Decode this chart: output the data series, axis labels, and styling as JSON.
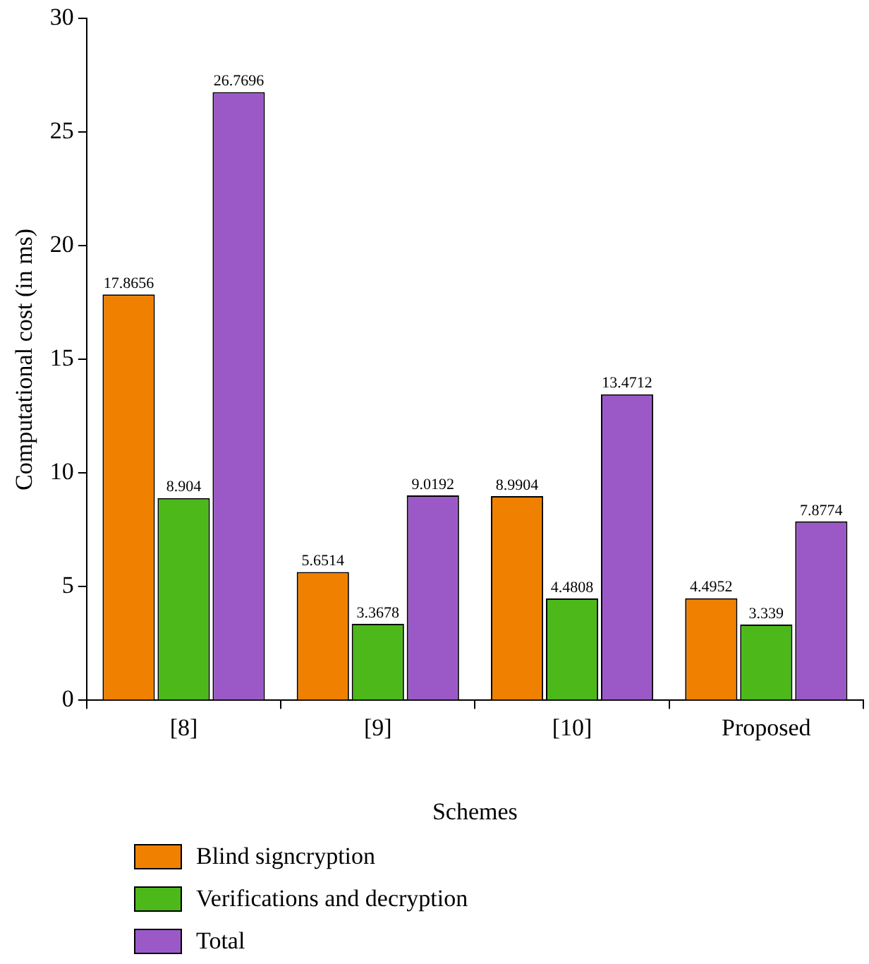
{
  "chart_data": {
    "type": "bar",
    "xlabel": "Schemes",
    "ylabel": "Computational cost (in ms)",
    "categories": [
      "[8]",
      "[9]",
      "[10]",
      "Proposed"
    ],
    "series": [
      {
        "name": "Blind signcryption",
        "color": "#f08000",
        "values": [
          17.8656,
          5.6514,
          8.9904,
          4.4952
        ]
      },
      {
        "name": "Verifications and decryption",
        "color": "#4cb81a",
        "values": [
          8.904,
          3.3678,
          4.4808,
          3.339
        ]
      },
      {
        "name": "Total",
        "color": "#9b59c8",
        "values": [
          26.7696,
          9.0192,
          13.4712,
          7.8774
        ]
      }
    ],
    "ylim": [
      0,
      30
    ],
    "yticks": [
      0,
      5,
      10,
      15,
      20,
      25,
      30
    ],
    "grid": false,
    "legend": "bottom",
    "data_labels": true
  }
}
